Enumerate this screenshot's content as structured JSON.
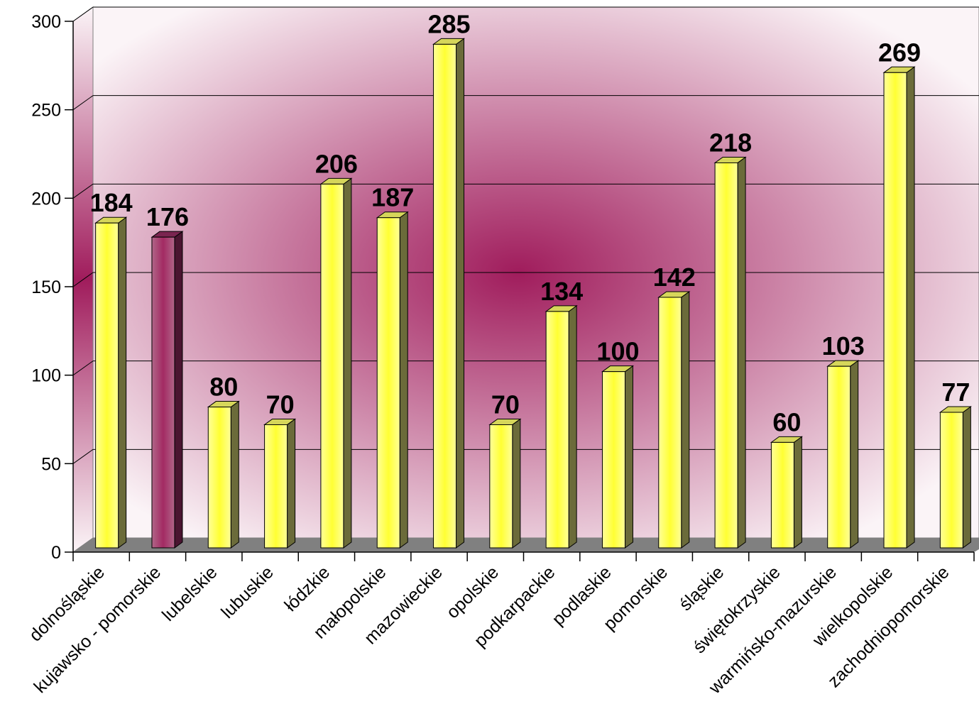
{
  "chart_data": {
    "type": "bar",
    "title": "",
    "xlabel": "",
    "ylabel": "",
    "ylim": [
      0,
      300
    ],
    "yticks": [
      0,
      50,
      100,
      150,
      200,
      250,
      300
    ],
    "grid": true,
    "legend": "none",
    "three_d": true,
    "categories": [
      "dolnośląskie",
      "kujawsko - pomorskie",
      "lubelskie",
      "lubuskie",
      "łódzkie",
      "małopolskie",
      "mazowieckie",
      "opolskie",
      "podkarpackie",
      "podlaskie",
      "pomorskie",
      "śląskie",
      "świętokrzyskie",
      "warmińsko-mazurskie",
      "wielkopolskie",
      "zachodniopomorskie"
    ],
    "values": [
      184,
      176,
      80,
      70,
      206,
      187,
      285,
      70,
      134,
      100,
      142,
      218,
      60,
      103,
      269,
      77
    ],
    "highlight_index": 1,
    "colors": {
      "bar_fill_center": "#ffff33",
      "bar_fill_edge": "#ffff99",
      "bar_side": "#6b6b3a",
      "bar_top": "#d6d65a",
      "highlight_fill_center": "#a32a63",
      "highlight_fill_edge": "#b06688",
      "highlight_side": "#4a1530",
      "highlight_top": "#7a2550",
      "wall_center": "#a01c5c",
      "wall_edge": "#fbf4f7",
      "floor": "#808080",
      "gridline": "#000000",
      "axis": "#000000"
    }
  }
}
